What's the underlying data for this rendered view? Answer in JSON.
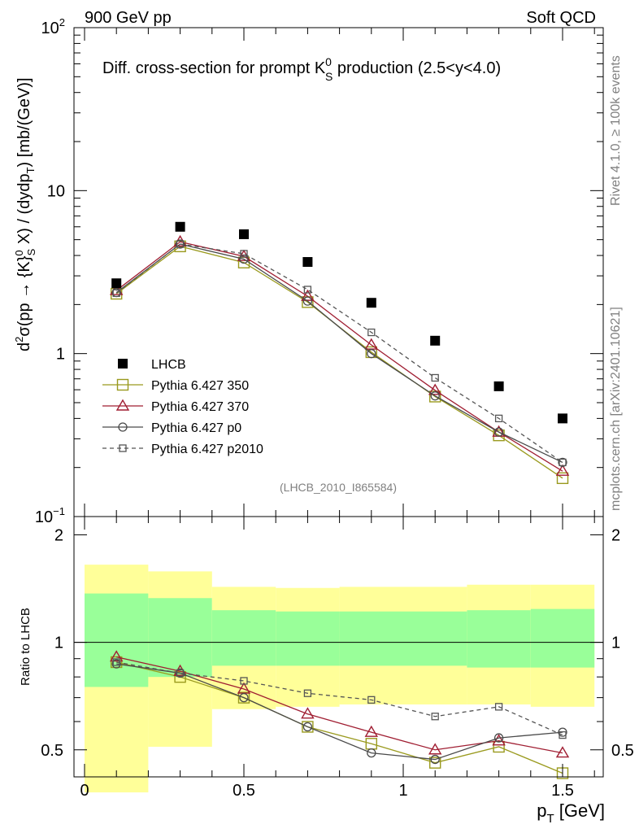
{
  "header": {
    "left": "900 GeV pp",
    "right": "Soft QCD"
  },
  "side_labels": {
    "rivet": "Rivet 4.1.0, ≥ 100k events",
    "mcplots": "mcplots.cern.ch [arXiv:2401.10621]"
  },
  "chart_data": [
    {
      "type": "scatter",
      "name": "main-panel",
      "title": {
        "prefix": "Diff. cross-section for prompt K",
        "sup": "0",
        "sub": "S",
        "suffix": " production (2.5<y<4.0)"
      },
      "ylabel": {
        "p1": "d",
        "sup2": "2",
        "p2": "σ(pp → {K}",
        "sup0": "0",
        "sub": "S",
        "p3": " X) / (dydp",
        "subT": "T",
        "p4": ") [mb/(GeV)]"
      },
      "yscale": "log",
      "ylim": [
        0.1,
        100
      ],
      "y_ticks": [
        {
          "value": 0.1,
          "base": "10",
          "exp": "−1"
        },
        {
          "value": 1,
          "base": "1",
          "exp": ""
        },
        {
          "value": 10,
          "base": "10",
          "exp": ""
        },
        {
          "value": 100,
          "base": "10",
          "exp": "2"
        }
      ],
      "x": [
        0.1,
        0.3,
        0.5,
        0.7,
        0.9,
        1.1,
        1.3,
        1.5
      ],
      "series": [
        {
          "name": "LHCB",
          "color": "#000000",
          "marker": "filled-square",
          "values": [
            2.7,
            6.0,
            5.4,
            3.65,
            2.05,
            1.2,
            0.63,
            0.4
          ]
        },
        {
          "name": "Pythia 6.427 350",
          "color": "#9a9a1e",
          "marker": "open-square",
          "line": "solid",
          "values": [
            2.33,
            4.55,
            3.62,
            2.07,
            1.02,
            0.545,
            0.315,
            0.172
          ]
        },
        {
          "name": "Pythia 6.427 370",
          "color": "#a01e32",
          "marker": "open-triangle",
          "line": "solid",
          "values": [
            2.44,
            4.85,
            3.95,
            2.25,
            1.13,
            0.595,
            0.33,
            0.19
          ]
        },
        {
          "name": "Pythia 6.427 p0",
          "color": "#4a4a4a",
          "marker": "open-circle",
          "line": "solid",
          "values": [
            2.37,
            4.7,
            3.8,
            2.1,
            1.0,
            0.55,
            0.33,
            0.215
          ]
        },
        {
          "name": "Pythia 6.427 p2010",
          "color": "#555555",
          "marker": "open-small-square",
          "line": "dashed",
          "values": [
            2.35,
            4.7,
            4.1,
            2.47,
            1.35,
            0.71,
            0.4,
            0.215
          ]
        }
      ],
      "annotation": "(LHCB_2010_I865584)"
    },
    {
      "type": "line",
      "name": "ratio-panel",
      "ylabel": "Ratio to LHCB",
      "xlabel": {
        "main": "p",
        "sub": "T",
        "unit": " [GeV]"
      },
      "ylim": [
        0.42,
        2.25
      ],
      "xlim": [
        -0.03,
        1.63
      ],
      "x_ticks": [
        {
          "value": 0,
          "label": "0"
        },
        {
          "value": 0.5,
          "label": "0.5"
        },
        {
          "value": 1,
          "label": "1"
        },
        {
          "value": 1.5,
          "label": "1.5"
        }
      ],
      "y_ticks": [
        {
          "value": 0.5,
          "label": "0.5"
        },
        {
          "value": 1,
          "label": "1"
        },
        {
          "value": 2,
          "label": "2"
        }
      ],
      "bins": [
        [
          0.0,
          0.2
        ],
        [
          0.2,
          0.4
        ],
        [
          0.4,
          0.6
        ],
        [
          0.6,
          0.8
        ],
        [
          0.8,
          1.0
        ],
        [
          1.0,
          1.2
        ],
        [
          1.2,
          1.4
        ],
        [
          1.4,
          1.6
        ]
      ],
      "band_inner": [
        [
          0.75,
          1.37
        ],
        [
          0.8,
          1.33
        ],
        [
          0.86,
          1.23
        ],
        [
          0.86,
          1.22
        ],
        [
          0.86,
          1.22
        ],
        [
          0.86,
          1.22
        ],
        [
          0.85,
          1.23
        ],
        [
          0.85,
          1.24
        ]
      ],
      "band_outer": [
        [
          0.38,
          1.65
        ],
        [
          0.51,
          1.58
        ],
        [
          0.65,
          1.43
        ],
        [
          0.66,
          1.42
        ],
        [
          0.67,
          1.43
        ],
        [
          0.67,
          1.43
        ],
        [
          0.67,
          1.45
        ],
        [
          0.66,
          1.45
        ]
      ],
      "reference": 1,
      "x": [
        0.1,
        0.3,
        0.5,
        0.7,
        0.9,
        1.1,
        1.3,
        1.5
      ],
      "series": [
        {
          "name": "Pythia 6.427 350",
          "color": "#9a9a1e",
          "values": [
            0.88,
            0.8,
            0.7,
            0.58,
            0.52,
            0.46,
            0.51,
            0.43
          ]
        },
        {
          "name": "Pythia 6.427 370",
          "color": "#a01e32",
          "values": [
            0.91,
            0.83,
            0.74,
            0.63,
            0.56,
            0.5,
            0.53,
            0.49
          ]
        },
        {
          "name": "Pythia 6.427 p0",
          "color": "#4a4a4a",
          "values": [
            0.87,
            0.82,
            0.7,
            0.58,
            0.49,
            0.47,
            0.54,
            0.56
          ]
        },
        {
          "name": "Pythia 6.427 p2010",
          "color": "#555555",
          "values": [
            0.88,
            0.82,
            0.78,
            0.72,
            0.69,
            0.62,
            0.66,
            0.55
          ]
        }
      ]
    }
  ],
  "colors": {
    "band_inner": "#99ff99",
    "band_outer": "#ffff99"
  }
}
